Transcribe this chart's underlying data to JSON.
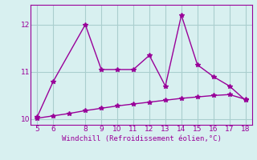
{
  "line1_x": [
    5,
    6,
    8,
    9,
    10,
    11,
    12,
    13,
    14,
    15,
    16,
    17,
    18
  ],
  "line1_y": [
    10.05,
    10.8,
    12.0,
    11.05,
    11.05,
    11.05,
    11.35,
    10.7,
    12.2,
    11.15,
    10.9,
    10.7,
    10.4
  ],
  "line2_x": [
    5,
    6,
    7,
    8,
    9,
    10,
    11,
    12,
    13,
    14,
    15,
    16,
    17,
    18
  ],
  "line2_y": [
    10.02,
    10.07,
    10.12,
    10.18,
    10.23,
    10.28,
    10.32,
    10.36,
    10.4,
    10.44,
    10.47,
    10.5,
    10.52,
    10.42
  ],
  "line_color": "#990099",
  "bg_color": "#d8f0f0",
  "grid_color": "#aacece",
  "xlabel": "Windchill (Refroidissement éolien,°C)",
  "xlabel_color": "#990099",
  "tick_color": "#990099",
  "xlim": [
    4.6,
    18.4
  ],
  "ylim": [
    9.88,
    12.42
  ],
  "xticks": [
    5,
    6,
    8,
    9,
    10,
    11,
    12,
    13,
    14,
    15,
    16,
    17,
    18
  ],
  "yticks": [
    10,
    11,
    12
  ],
  "marker": "*",
  "markersize": 4,
  "linewidth": 1.0
}
